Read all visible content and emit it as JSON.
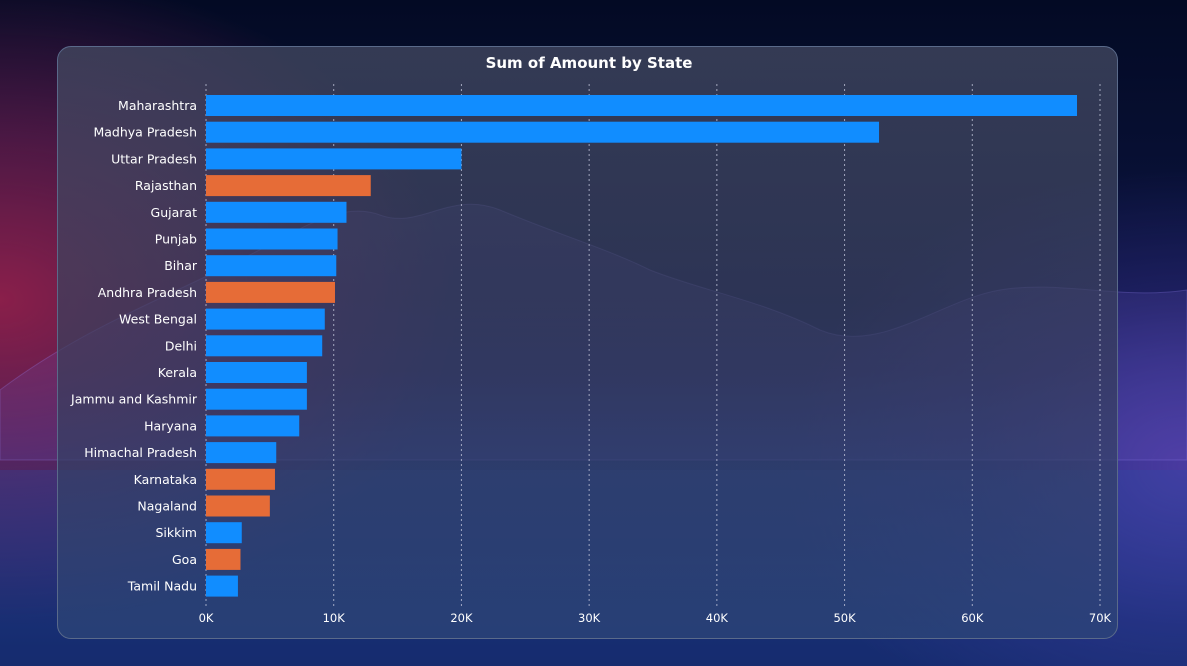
{
  "chart_data": {
    "type": "bar",
    "orientation": "horizontal",
    "title": "Sum of Amount by State",
    "xlabel": "",
    "ylabel": "",
    "xlim": [
      0,
      70000
    ],
    "x_ticks": [
      0,
      10000,
      20000,
      30000,
      40000,
      50000,
      60000,
      70000
    ],
    "x_tick_labels": [
      "0K",
      "10K",
      "20K",
      "30K",
      "40K",
      "50K",
      "60K",
      "70K"
    ],
    "grid": true,
    "colors": {
      "default": "#118DFF",
      "highlight": "#E66C37"
    },
    "categories": [
      "Maharashtra",
      "Madhya Pradesh",
      "Uttar Pradesh",
      "Rajasthan",
      "Gujarat",
      "Punjab",
      "Bihar",
      "Andhra Pradesh",
      "West Bengal",
      "Delhi",
      "Kerala",
      "Jammu and Kashmir",
      "Haryana",
      "Himachal Pradesh",
      "Karnataka",
      "Nagaland",
      "Sikkim",
      "Goa",
      "Tamil Nadu"
    ],
    "values": [
      68200,
      52700,
      20000,
      12900,
      11000,
      10300,
      10200,
      10100,
      9300,
      9100,
      7900,
      7900,
      7300,
      5500,
      5400,
      5000,
      2800,
      2700,
      2500
    ],
    "highlighted": [
      false,
      false,
      false,
      true,
      false,
      false,
      false,
      true,
      false,
      false,
      false,
      false,
      false,
      false,
      true,
      true,
      false,
      true,
      false
    ]
  }
}
